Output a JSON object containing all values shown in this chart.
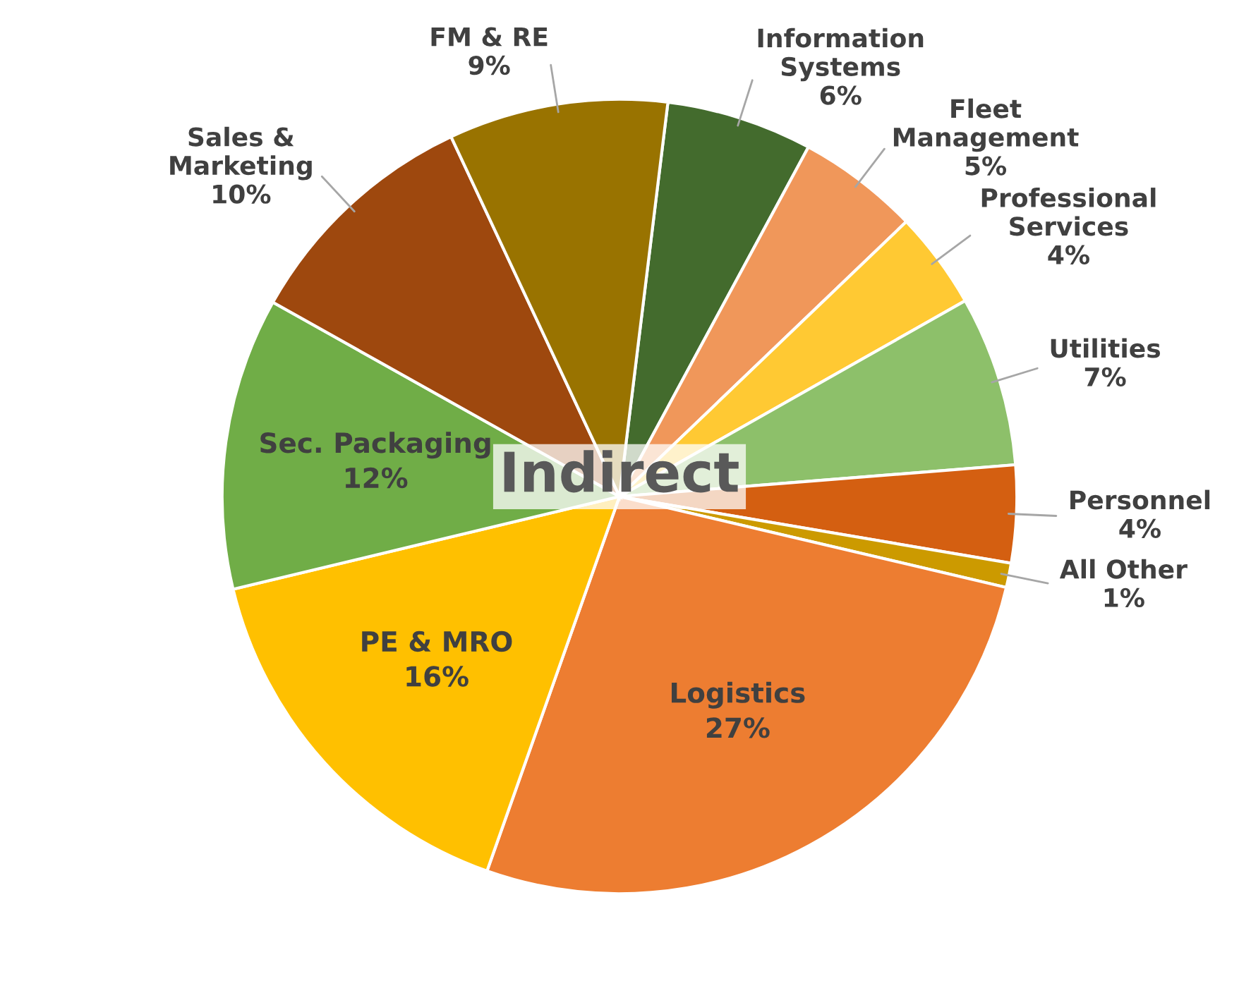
{
  "chart_data": {
    "type": "pie",
    "categories": [
      "Information Systems",
      "Fleet Management",
      "Professional Services",
      "Utilities",
      "Personnel",
      "All Other",
      "Logistics",
      "PE & MRO",
      "Sec. Packaging",
      "Sales & Marketing",
      "FM & RE"
    ],
    "values": [
      6,
      5,
      4,
      7,
      4,
      1,
      27,
      16,
      12,
      10,
      9
    ],
    "colors": [
      "#436b2d",
      "#f0975a",
      "#ffc933",
      "#8dc06a",
      "#d45f11",
      "#cc9a00",
      "#ed7d31",
      "#ffc000",
      "#70ad47",
      "#9e480e",
      "#997300"
    ],
    "value_labels": [
      "6%",
      "5%",
      "4%",
      "7%",
      "4%",
      "1%",
      "27%",
      "16%",
      "12%",
      "10%",
      "9%"
    ],
    "annotations": [
      "Indirect"
    ]
  }
}
